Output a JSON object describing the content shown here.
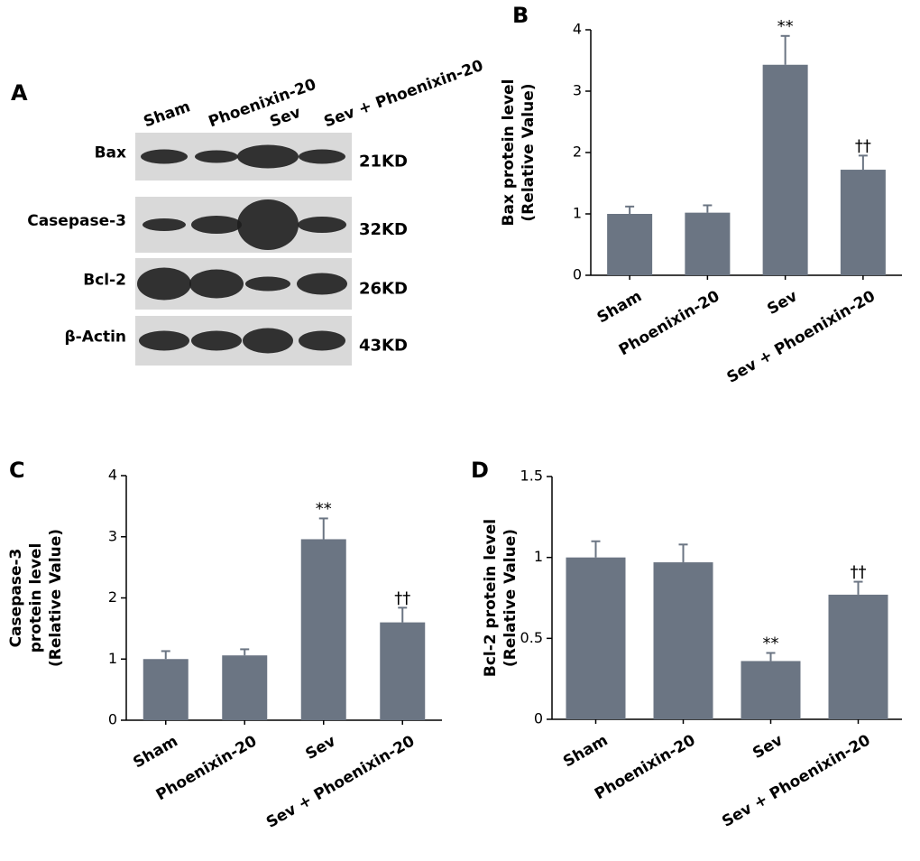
{
  "blot": {
    "label": "A",
    "lanes": [
      "Sham",
      "Phoenixin-20",
      "Sev",
      "Sev + Phoenixin-20"
    ],
    "bands": [
      {
        "name": "Bax",
        "size": "21KD"
      },
      {
        "name": "Casepase-3",
        "size": "32KD"
      },
      {
        "name": "Bcl-2",
        "size": "26KD"
      },
      {
        "name": "β-Actin",
        "size": "43KD"
      }
    ]
  },
  "chart_data": [
    {
      "type": "bar",
      "label": "B",
      "ylabel": [
        "Bax protein level",
        "(Relative Value)"
      ],
      "categories": [
        "Sham",
        "Phoenixin-20",
        "Sev",
        "Sev + Phoenixin-20"
      ],
      "values": [
        1.0,
        1.02,
        3.43,
        1.72
      ],
      "errors": [
        0.12,
        0.12,
        0.47,
        0.23
      ],
      "markers": [
        null,
        null,
        "**",
        "††"
      ],
      "color": "#6b7583",
      "ylim": [
        0,
        4
      ],
      "yticks": [
        0,
        1,
        2,
        3,
        4
      ]
    },
    {
      "type": "bar",
      "label": "C",
      "ylabel": [
        "Casepase-3",
        "protein level",
        "(Relative Value)"
      ],
      "categories": [
        "Sham",
        "Phoenixin-20",
        "Sev",
        "Sev + Phoenixin-20"
      ],
      "values": [
        1.0,
        1.06,
        2.96,
        1.6
      ],
      "errors": [
        0.13,
        0.1,
        0.34,
        0.24
      ],
      "markers": [
        null,
        null,
        "**",
        "††"
      ],
      "color": "#6b7583",
      "ylim": [
        0,
        4
      ],
      "yticks": [
        0,
        1,
        2,
        3,
        4
      ]
    },
    {
      "type": "bar",
      "label": "D",
      "ylabel": [
        "Bcl-2 protein level",
        "(Relative Value)"
      ],
      "categories": [
        "Sham",
        "Phoenixin-20",
        "Sev",
        "Sev + Phoenixin-20"
      ],
      "values": [
        1.0,
        0.97,
        0.36,
        0.77
      ],
      "errors": [
        0.1,
        0.11,
        0.05,
        0.08
      ],
      "markers": [
        null,
        null,
        "**",
        "††"
      ],
      "color": "#6b7583",
      "ylim": [
        0,
        1.5
      ],
      "yticks": [
        0,
        0.5,
        1,
        1.5
      ]
    }
  ]
}
